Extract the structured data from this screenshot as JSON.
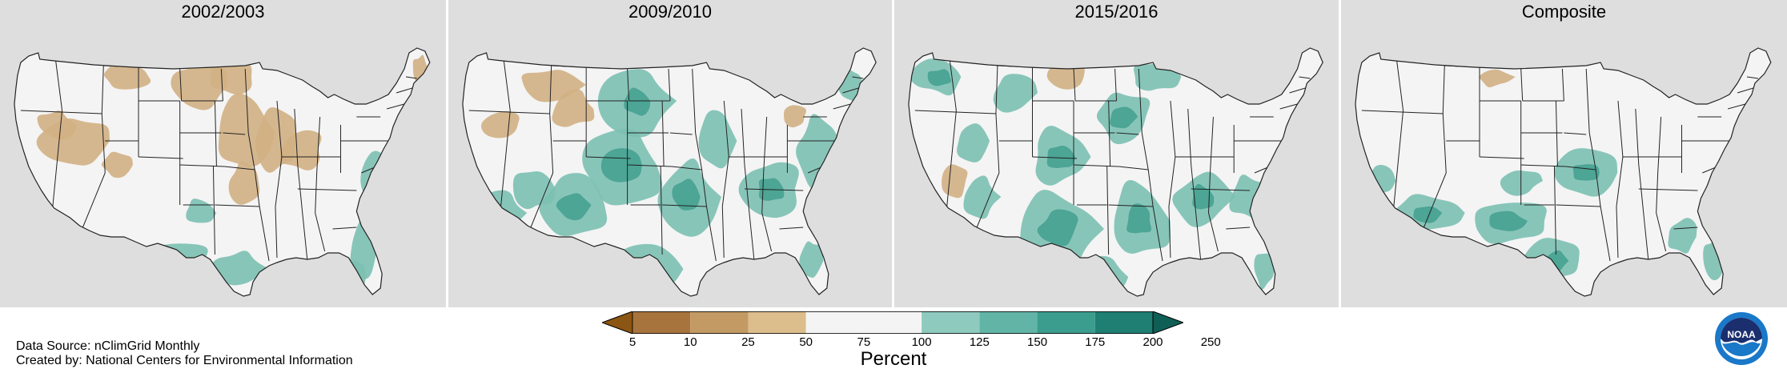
{
  "panels": [
    {
      "title": "2002/2003"
    },
    {
      "title": "2009/2010"
    },
    {
      "title": "2015/2016"
    },
    {
      "title": "Composite"
    }
  ],
  "legend": {
    "title": "Percent",
    "tick_labels": [
      "5",
      "10",
      "25",
      "50",
      "75",
      "100",
      "125",
      "150",
      "175",
      "200",
      "250"
    ],
    "colors": [
      "#8b5513",
      "#a8743d",
      "#c39a63",
      "#dcbd8c",
      "#f4f4f4",
      "#f4f4f4",
      "#8fcabf",
      "#62b5a6",
      "#3a9d8d",
      "#1e7f72",
      "#0f5f56"
    ]
  },
  "footer": {
    "source": "Data Source: nClimGrid Monthly",
    "credit": "Created by: National Centers for Environmental Information"
  },
  "logo": {
    "text": "NOAA"
  },
  "colors": {
    "background": "#dedede",
    "land": "#f4f4f4",
    "dry": "#d2b084",
    "wet": "#7cc0b2",
    "wet_dark": "#3d9c8c",
    "border": "#222222"
  }
}
